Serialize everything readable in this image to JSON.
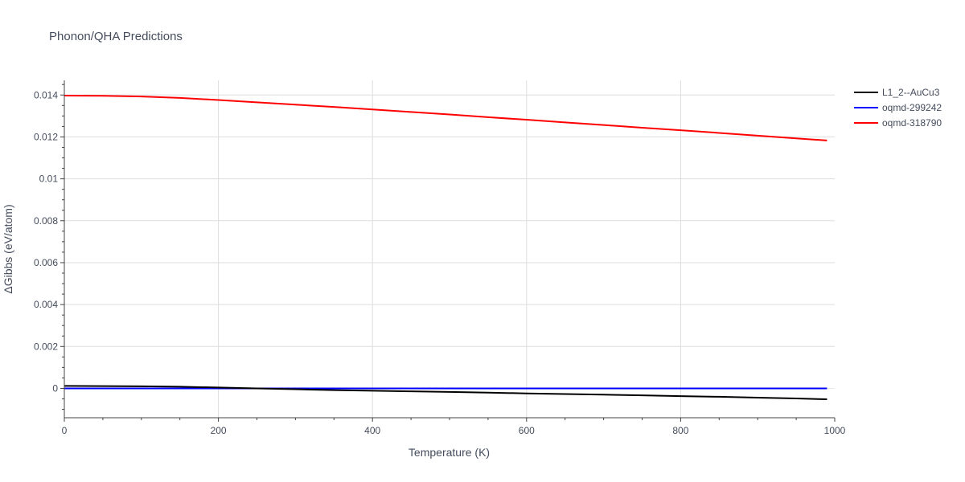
{
  "chart_data": {
    "type": "line",
    "title": "Phonon/QHA Predictions",
    "xlabel": "Temperature (K)",
    "ylabel": "ΔGibbs (eV/atom)",
    "xlim": [
      0,
      1000
    ],
    "ylim": [
      -0.0014,
      0.0147
    ],
    "x_ticks": [
      0,
      200,
      400,
      600,
      800,
      1000
    ],
    "x_tick_labels": [
      "0",
      "200",
      "400",
      "600",
      "800",
      "1000"
    ],
    "y_ticks": [
      0,
      0.002,
      0.004,
      0.006,
      0.008,
      0.01,
      0.012,
      0.014
    ],
    "y_tick_labels": [
      "0",
      "0.002",
      "0.004",
      "0.006",
      "0.008",
      "0.01",
      "0.012",
      "0.014"
    ],
    "grid": true,
    "legend_position": "top-right",
    "series": [
      {
        "name": "L1_2--AuCu3",
        "color": "#000000",
        "x": [
          0,
          50,
          100,
          150,
          200,
          250,
          300,
          350,
          400,
          450,
          500,
          550,
          600,
          650,
          700,
          750,
          800,
          850,
          900,
          950,
          990
        ],
        "y": [
          0.00012,
          0.00011,
          0.0001,
          8e-05,
          4e-05,
          0.0,
          -4e-05,
          -8e-05,
          -0.00011,
          -0.00014,
          -0.00017,
          -0.0002,
          -0.00024,
          -0.00027,
          -0.0003,
          -0.00033,
          -0.00037,
          -0.0004,
          -0.00044,
          -0.00048,
          -0.00052
        ]
      },
      {
        "name": "oqmd-299242",
        "color": "#0000ff",
        "x": [
          0,
          990
        ],
        "y": [
          0.0,
          0.0
        ]
      },
      {
        "name": "oqmd-318790",
        "color": "#ff0000",
        "x": [
          0,
          50,
          100,
          150,
          200,
          250,
          300,
          350,
          400,
          450,
          500,
          550,
          600,
          650,
          700,
          750,
          800,
          850,
          900,
          950,
          990
        ],
        "y": [
          0.01397,
          0.01396,
          0.01393,
          0.01386,
          0.01376,
          0.01365,
          0.01354,
          0.01343,
          0.01331,
          0.01319,
          0.01307,
          0.01294,
          0.01282,
          0.01269,
          0.01257,
          0.01244,
          0.01232,
          0.01219,
          0.01206,
          0.01193,
          0.01183
        ]
      }
    ]
  }
}
